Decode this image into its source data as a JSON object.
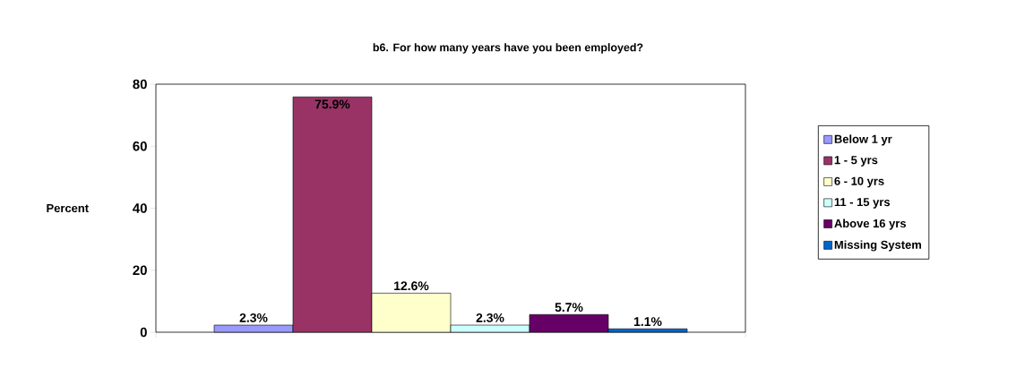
{
  "chart_data": {
    "type": "bar",
    "title": "b6. For how many years have you been employed?",
    "ylabel": "Percent",
    "categories": [
      null
    ],
    "series": [
      {
        "name": "Below 1 yr",
        "color": "#9999ff",
        "values": [
          2.3
        ],
        "value_labels": [
          "2.3%"
        ]
      },
      {
        "name": "1 - 5 yrs",
        "color": "#993366",
        "values": [
          75.9
        ],
        "value_labels": [
          "75.9%"
        ]
      },
      {
        "name": "6 - 10 yrs",
        "color": "#ffffcc",
        "values": [
          12.6
        ],
        "value_labels": [
          "12.6%"
        ]
      },
      {
        "name": "11 - 15 yrs",
        "color": "#ccffff",
        "values": [
          2.3
        ],
        "value_labels": [
          "2.3%"
        ]
      },
      {
        "name": "Above 16 yrs",
        "color": "#660066",
        "values": [
          5.7
        ],
        "value_labels": [
          "5.7%"
        ]
      },
      {
        "name": "Missing System",
        "color": "#0066cc",
        "values": [
          1.1
        ],
        "value_labels": [
          "1.1%"
        ]
      }
    ],
    "ylim": [
      0,
      80
    ],
    "yticks": [
      0,
      20,
      40,
      60,
      80
    ],
    "legend": "right",
    "tick_labels": "y"
  }
}
